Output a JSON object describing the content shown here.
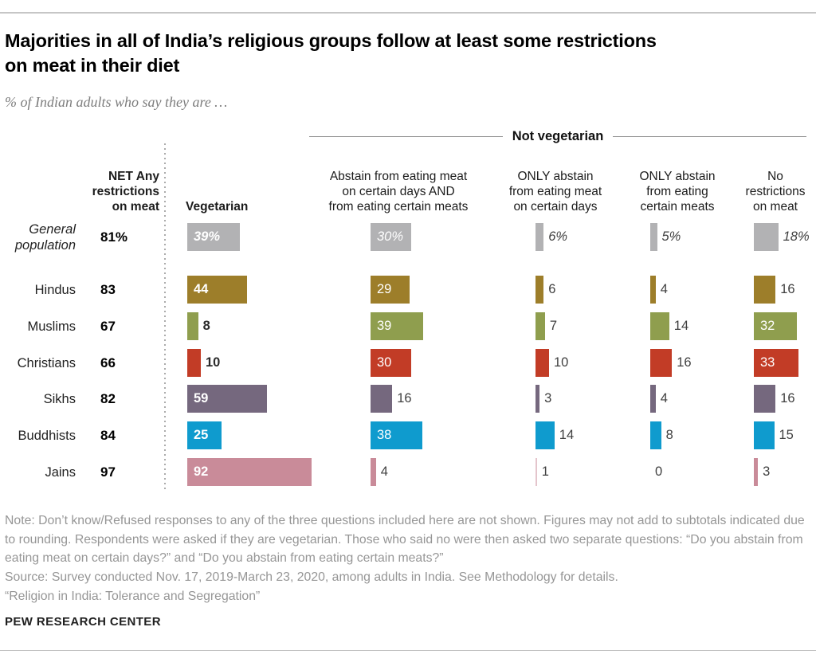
{
  "header": {
    "title": "Majorities in all of India’s religious groups follow at least some restrictions on meat in their diet",
    "title_lines": [
      "Majorities in all of India’s religious groups follow at least some restrictions",
      "on meat in their diet"
    ],
    "subtitle": "% of Indian adults who say they are …"
  },
  "table": {
    "group_label": "Not vegetarian",
    "columns": [
      {
        "id": "net",
        "label": "NET Any restrictions on meat",
        "lines": [
          "NET Any",
          "restrictions",
          "on meat"
        ]
      },
      {
        "id": "vegetarian",
        "label": "Vegetarian",
        "lines": [
          "Vegetarian"
        ]
      },
      {
        "id": "abstain_days_and_meats",
        "label": "Abstain from eating meat on certain days AND from eating certain meats",
        "lines": [
          "Abstain from eating meat",
          "on certain days AND",
          "from eating certain meats"
        ]
      },
      {
        "id": "only_days",
        "label": "ONLY abstain from eating meat on certain days",
        "lines": [
          "ONLY abstain",
          "from eating meat",
          "on certain days"
        ]
      },
      {
        "id": "only_meats",
        "label": "ONLY abstain from eating certain meats",
        "lines": [
          "ONLY abstain",
          "from eating",
          "certain meats"
        ]
      },
      {
        "id": "no_restrictions",
        "label": "No restrictions on meat",
        "lines": [
          "No",
          "restrictions",
          "on meat"
        ]
      }
    ],
    "rows": [
      {
        "label": "General population",
        "net": "81%",
        "values": [
          "39%",
          "30%",
          "6%",
          "5%",
          "18%"
        ],
        "numeric": [
          39,
          30,
          6,
          5,
          18
        ],
        "color": "#b2b2b4",
        "italic": true
      },
      {
        "label": "Hindus",
        "net": "83",
        "values": [
          "44",
          "29",
          "6",
          "4",
          "16"
        ],
        "numeric": [
          44,
          29,
          6,
          4,
          16
        ],
        "color": "#9d7e2a",
        "italic": false
      },
      {
        "label": "Muslims",
        "net": "67",
        "values": [
          "8",
          "39",
          "7",
          "14",
          "32"
        ],
        "numeric": [
          8,
          39,
          7,
          14,
          32
        ],
        "color": "#8f9e4e",
        "italic": false
      },
      {
        "label": "Christians",
        "net": "66",
        "values": [
          "10",
          "30",
          "10",
          "16",
          "33"
        ],
        "numeric": [
          10,
          30,
          10,
          16,
          33
        ],
        "color": "#c23c26",
        "italic": false
      },
      {
        "label": "Sikhs",
        "net": "82",
        "values": [
          "59",
          "16",
          "3",
          "4",
          "16"
        ],
        "numeric": [
          59,
          16,
          3,
          4,
          16
        ],
        "color": "#75687e",
        "italic": false
      },
      {
        "label": "Buddhists",
        "net": "84",
        "values": [
          "25",
          "38",
          "14",
          "8",
          "15"
        ],
        "numeric": [
          25,
          38,
          14,
          8,
          15
        ],
        "color": "#0f9bce",
        "italic": false
      },
      {
        "label": "Jains",
        "net": "97",
        "values": [
          "92",
          "4",
          "1",
          "0",
          "3"
        ],
        "numeric": [
          92,
          4,
          1,
          0,
          3
        ],
        "color": "#c98b99",
        "italic": false
      }
    ]
  },
  "chart_data": {
    "type": "bar",
    "orientation": "horizontal",
    "unit": "%",
    "title": "Majorities in all of India’s religious groups follow at least some restrictions on meat in their diet",
    "subtitle": "% of Indian adults who say they are …",
    "group_header_over_columns_2_to_5": "Not vegetarian",
    "columns": [
      "Vegetarian",
      "Abstain from eating meat on certain days AND from eating certain meats",
      "ONLY abstain from eating meat on certain days",
      "ONLY abstain from eating certain meats",
      "No restrictions on meat"
    ],
    "rows": [
      {
        "group": "General population",
        "net_any_restrictions": 81,
        "values": [
          39,
          30,
          6,
          5,
          18
        ]
      },
      {
        "group": "Hindus",
        "net_any_restrictions": 83,
        "values": [
          44,
          29,
          6,
          4,
          16
        ]
      },
      {
        "group": "Muslims",
        "net_any_restrictions": 67,
        "values": [
          8,
          39,
          7,
          14,
          32
        ]
      },
      {
        "group": "Christians",
        "net_any_restrictions": 66,
        "values": [
          10,
          30,
          10,
          16,
          33
        ]
      },
      {
        "group": "Sikhs",
        "net_any_restrictions": 82,
        "values": [
          59,
          16,
          3,
          4,
          16
        ]
      },
      {
        "group": "Buddhists",
        "net_any_restrictions": 84,
        "values": [
          25,
          38,
          14,
          8,
          15
        ]
      },
      {
        "group": "Jains",
        "net_any_restrictions": 97,
        "values": [
          92,
          4,
          1,
          0,
          3
        ]
      }
    ],
    "colors": {
      "General population": "#b2b2b4",
      "Hindus": "#9d7e2a",
      "Muslims": "#8f9e4e",
      "Christians": "#c23c26",
      "Sikhs": "#75687e",
      "Buddhists": "#0f9bce",
      "Jains": "#c98b99"
    },
    "xlim": [
      0,
      100
    ],
    "grid": false,
    "legend": false
  },
  "footer": {
    "note": "Note: Don’t know/Refused responses to any of the three questions included here are not shown. Figures may not add to subtotals indicated due to rounding. Respondents were asked if they are vegetarian. Those who said no were then asked two separate questions: “Do you abstain from eating meat on certain days?” and “Do you abstain from eating certain meats?”",
    "source": "Source: Survey conducted Nov. 17, 2019-March 23, 2020, among adults in India. See Methodology for details.",
    "quote": "“Religion in India: Tolerance and Segregation”",
    "brand": "PEW RESEARCH CENTER"
  }
}
